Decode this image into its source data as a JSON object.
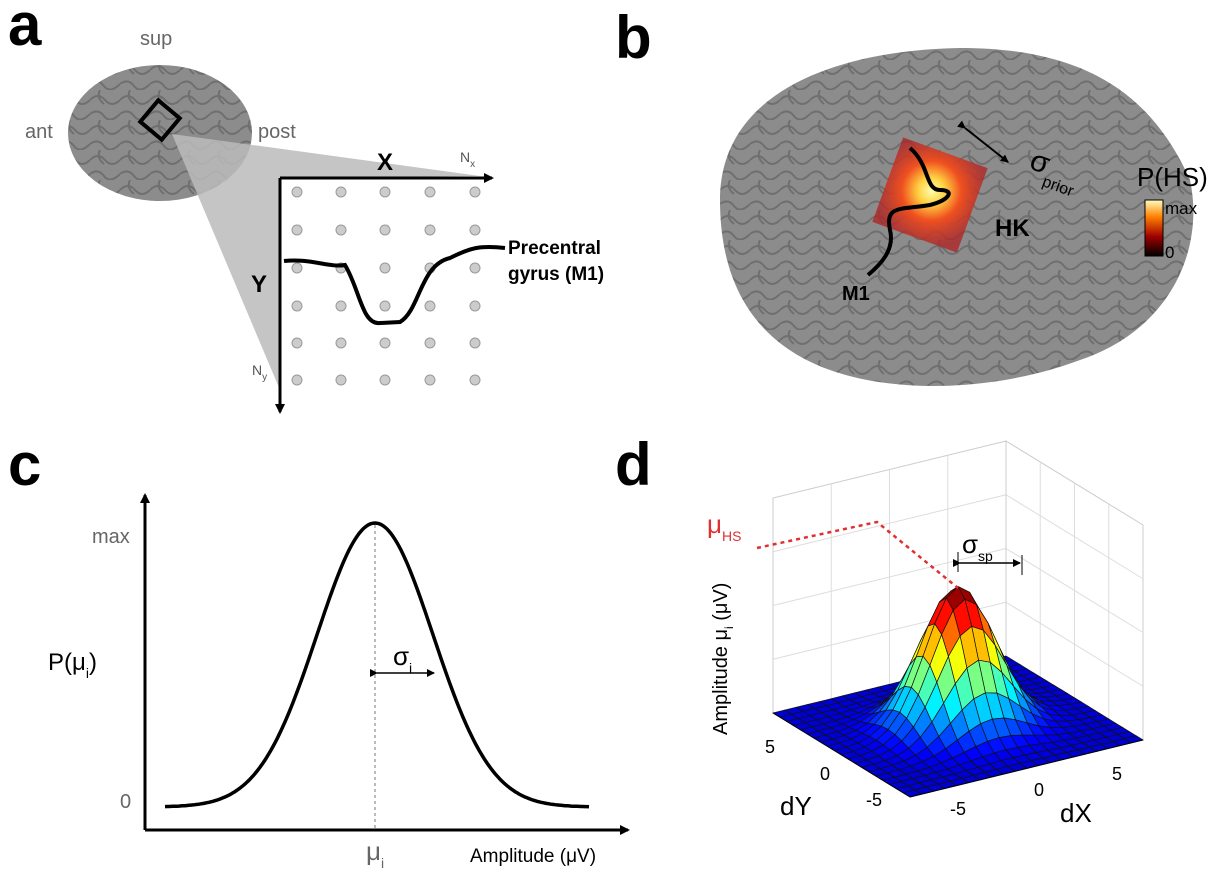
{
  "panels": {
    "a": {
      "label": "a",
      "sup": "sup",
      "ant": "ant",
      "post": "post",
      "x_axis": "X",
      "nx": {
        "base": "N",
        "sub": "x"
      },
      "y_axis": "Y",
      "ny": {
        "base": "N",
        "sub": "y"
      },
      "gyrus": [
        "Precentral",
        "gyrus (M1)"
      ]
    },
    "b": {
      "label": "b",
      "sigma": {
        "base": "σ",
        "sub": "prior"
      },
      "colorbar_title": "P(HS)",
      "colorbar_max": "max",
      "colorbar_min": "0",
      "hk": "HK",
      "m1": "M1"
    },
    "c": {
      "label": "c",
      "y_max": "max",
      "y_zero": "0",
      "y_label": {
        "base": "P(μ",
        "sub": "i",
        "end": ")"
      },
      "sigma": {
        "base": "σ",
        "sub": "i"
      },
      "mu": {
        "base": "μ",
        "sub": "i"
      },
      "x_label": "Amplitude (μV)"
    },
    "d": {
      "label": "d",
      "mu_hs": {
        "base": "μ",
        "sub": "HS"
      },
      "sigma": {
        "base": "σ",
        "sub": "sp"
      },
      "z_label": {
        "base": "Amplitude μ",
        "sub": "i",
        "end": " (μV)"
      },
      "dy_label": "dY",
      "dx_label": "dX",
      "dy_ticks": [
        "5",
        "0",
        "-5"
      ],
      "dx_ticks": [
        "-5",
        "0",
        "5"
      ]
    }
  }
}
